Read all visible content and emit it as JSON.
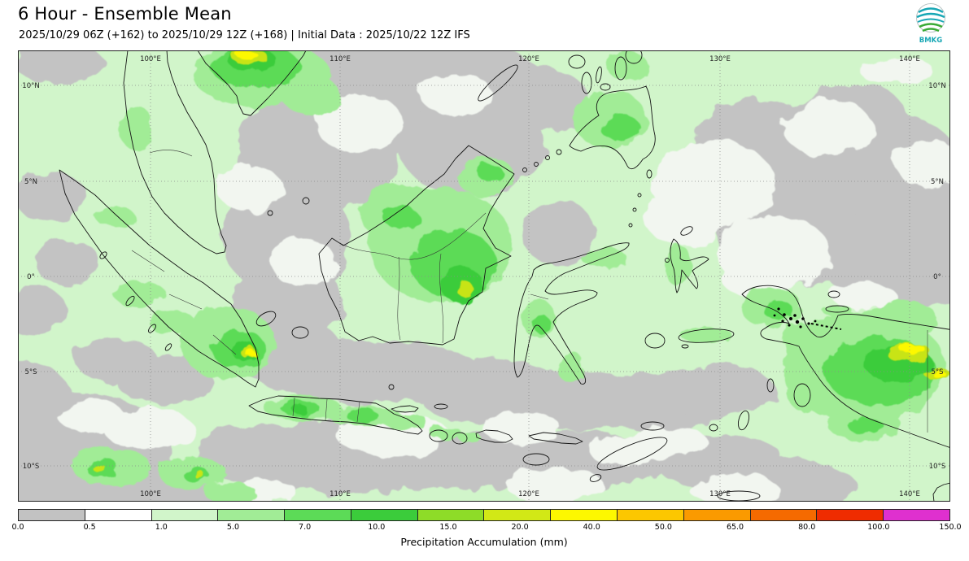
{
  "header": {
    "title": "6 Hour - Ensemble Mean",
    "subtitle": "2025/10/29 06Z (+162) to 2025/10/29 12Z (+168) | Initial Data : 2025/10/22 12Z IFS",
    "logo_text": "BMKG"
  },
  "map": {
    "lon_ticks": [
      "100°E",
      "110°E",
      "120°E",
      "130°E",
      "140°E"
    ],
    "lat_ticks": [
      "10°N",
      "5°N",
      "0°",
      "5°S",
      "10°S"
    ]
  },
  "colorbar": {
    "label": "Precipitation Accumulation (mm)",
    "ticks": [
      "0.0",
      "0.5",
      "1.0",
      "5.0",
      "7.0",
      "10.0",
      "15.0",
      "20.0",
      "40.0",
      "50.0",
      "65.0",
      "80.0",
      "100.0",
      "150.0"
    ],
    "colors": [
      "#c2c2c2",
      "#ffffff",
      "#d1f5ca",
      "#a1ec96",
      "#5cdb57",
      "#3bcc3b",
      "#8edc28",
      "#d2e816",
      "#fdf800",
      "#fcc700",
      "#fa9a00",
      "#f56a00",
      "#ef2c00",
      "#df30cf"
    ]
  }
}
